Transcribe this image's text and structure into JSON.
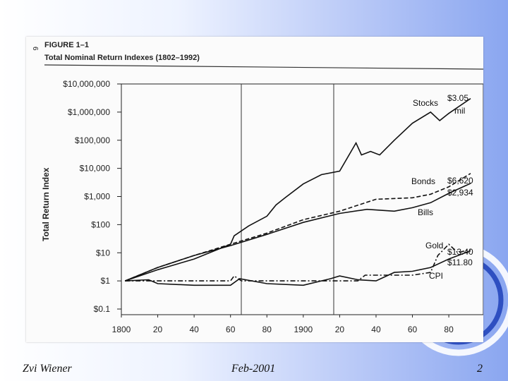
{
  "slide": {
    "footer_author": "Zvi Wiener",
    "footer_date": "Feb-2001",
    "page_number": "2"
  },
  "chart_data": {
    "type": "line",
    "page_number_rotated": "6",
    "figure_label": "FIGURE 1–1",
    "title": "Total Nominal Return Indexes (1802–1992)",
    "ylabel": "Total Return Index",
    "xlabel": "",
    "y_scale": "log",
    "ylim": [
      0.1,
      10000000
    ],
    "xlim": [
      1800,
      1992
    ],
    "x_ticks": [
      1800,
      1820,
      1840,
      1860,
      1880,
      1900,
      1920,
      1940,
      1960,
      1980
    ],
    "x_tick_labels": [
      "1800",
      "20",
      "40",
      "60",
      "80",
      "1900",
      "20",
      "40",
      "60",
      "80"
    ],
    "y_ticks": [
      0.1,
      1,
      10,
      100,
      1000,
      10000,
      100000,
      1000000,
      10000000
    ],
    "y_tick_labels": [
      "$0.1",
      "$1",
      "$10",
      "$100",
      "$1,000",
      "$10,000",
      "$100,000",
      "$1,000,000",
      "$10,000,000"
    ],
    "vertical_lines": [
      1861,
      1926
    ],
    "series": [
      {
        "name": "Stocks",
        "end_label": "$3.05 mil",
        "style": "solid",
        "x": [
          1802,
          1820,
          1840,
          1860,
          1862,
          1870,
          1880,
          1885,
          1890,
          1900,
          1910,
          1920,
          1929,
          1932,
          1937,
          1942,
          1950,
          1960,
          1970,
          1975,
          1980,
          1992
        ],
        "y": [
          1,
          2.5,
          6,
          20,
          40,
          90,
          200,
          500,
          900,
          2800,
          6000,
          8000,
          80000,
          30000,
          40000,
          30000,
          100000,
          400000,
          1000000,
          500000,
          900000,
          3050000
        ]
      },
      {
        "name": "Bonds",
        "end_label": "$6,620",
        "style": "dashed",
        "x": [
          1802,
          1820,
          1840,
          1860,
          1880,
          1900,
          1920,
          1940,
          1960,
          1970,
          1980,
          1992
        ],
        "y": [
          1,
          3,
          8,
          20,
          50,
          150,
          300,
          800,
          900,
          1200,
          2200,
          6620
        ]
      },
      {
        "name": "Bills",
        "end_label": "$2,934",
        "style": "solid",
        "x": [
          1802,
          1820,
          1840,
          1860,
          1880,
          1900,
          1920,
          1935,
          1950,
          1960,
          1970,
          1980,
          1992
        ],
        "y": [
          1,
          3,
          8,
          18,
          45,
          120,
          250,
          350,
          300,
          400,
          600,
          1300,
          2934
        ]
      },
      {
        "name": "Gold",
        "end_label": "$13.40",
        "style": "dash-dot",
        "x": [
          1802,
          1820,
          1840,
          1860,
          1862,
          1866,
          1880,
          1900,
          1930,
          1934,
          1960,
          1970,
          1974,
          1980,
          1985,
          1992
        ],
        "y": [
          1,
          1,
          1,
          1,
          1.5,
          1,
          1,
          1,
          1,
          1.6,
          1.6,
          2,
          8,
          20,
          10,
          13.4
        ]
      },
      {
        "name": "CPI",
        "end_label": "$11.80",
        "style": "solid",
        "x": [
          1802,
          1815,
          1820,
          1840,
          1860,
          1865,
          1880,
          1900,
          1915,
          1920,
          1930,
          1940,
          1950,
          1960,
          1970,
          1980,
          1992
        ],
        "y": [
          1,
          1.1,
          0.8,
          0.7,
          0.7,
          1.2,
          0.8,
          0.7,
          1.2,
          1.5,
          1.1,
          1,
          2,
          2.2,
          3,
          6,
          11.8
        ]
      }
    ]
  }
}
